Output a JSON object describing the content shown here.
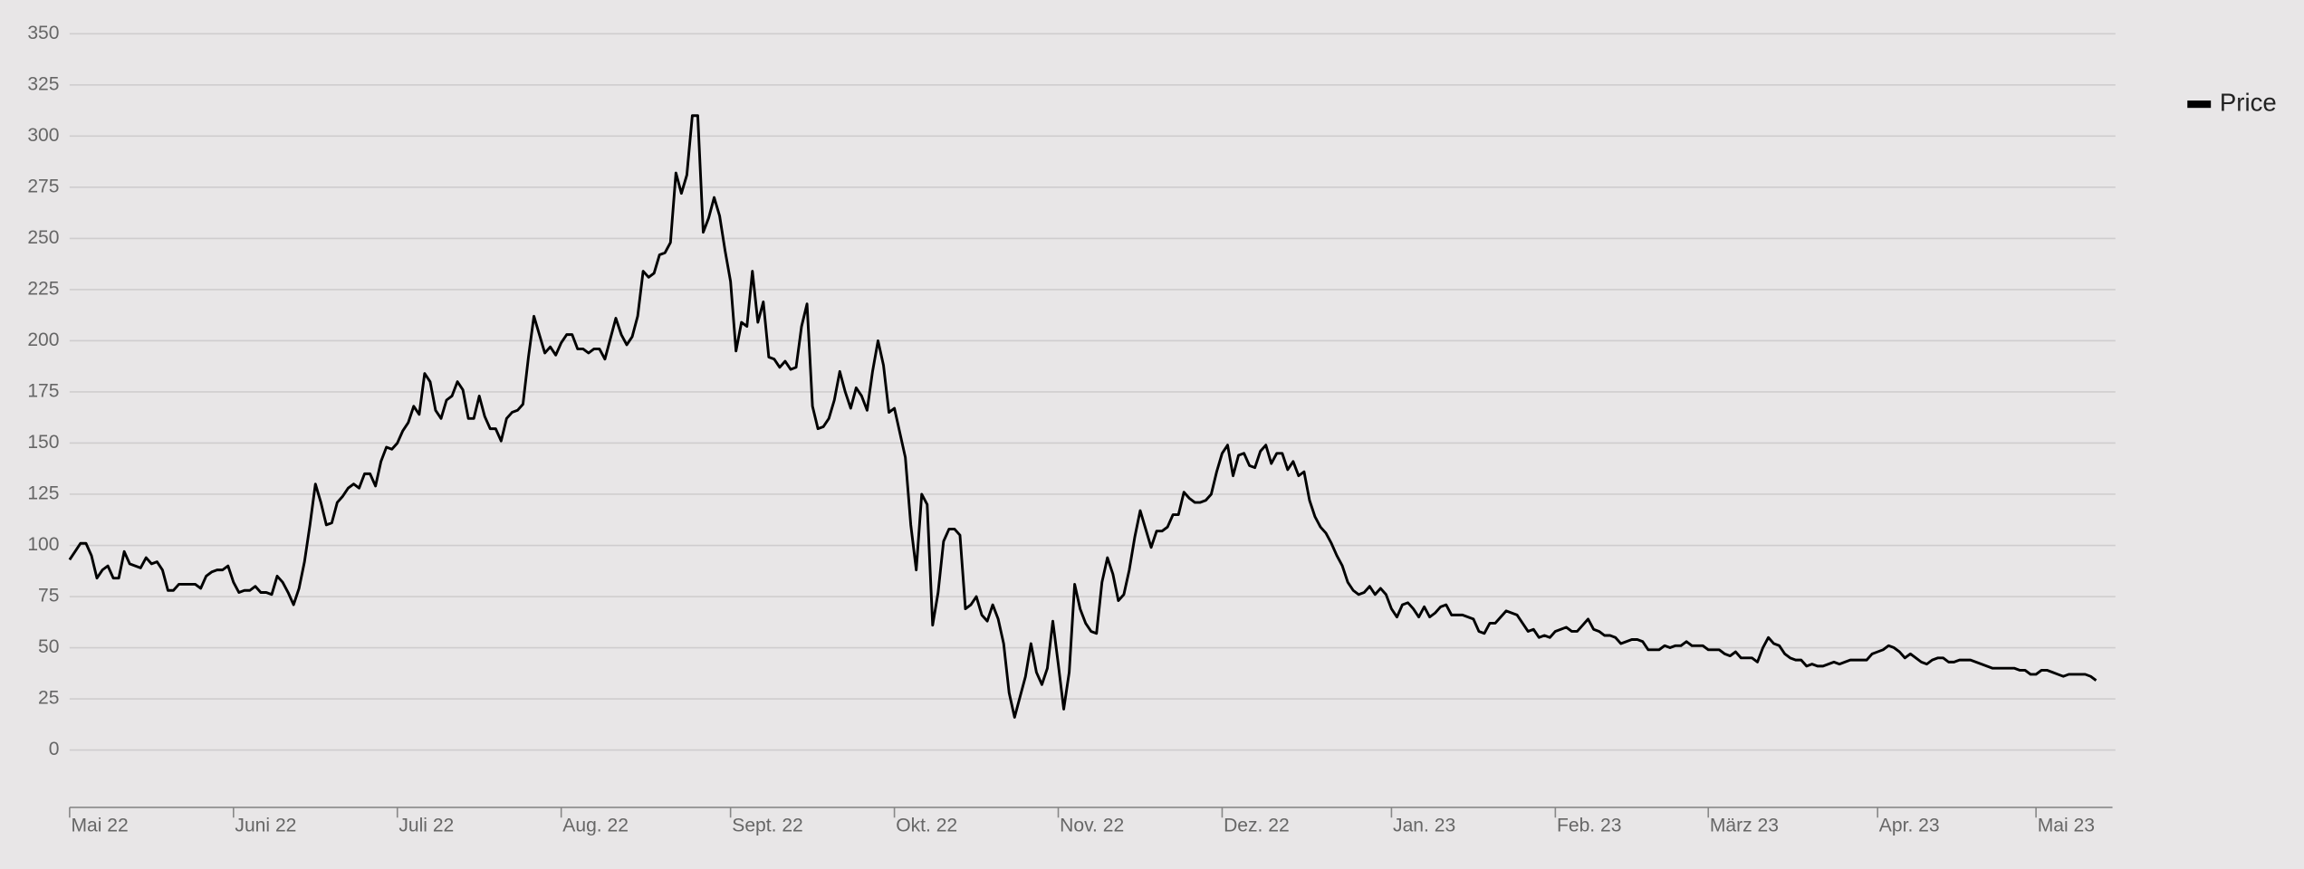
{
  "chart_data": {
    "type": "line",
    "series": [
      {
        "name": "Price",
        "color": "#000000",
        "values": [
          93,
          97,
          101,
          101,
          95,
          84,
          88,
          90,
          84,
          84,
          97,
          91,
          90,
          89,
          94,
          91,
          92,
          88,
          78,
          78,
          81,
          81,
          81,
          81,
          79,
          85,
          87,
          88,
          88,
          90,
          82,
          77,
          78,
          78,
          80,
          77,
          77,
          76,
          85,
          82,
          77,
          71,
          79,
          92,
          110,
          130,
          121,
          110,
          111,
          121,
          124,
          128,
          130,
          128,
          135,
          135,
          129,
          141,
          148,
          147,
          150,
          156,
          160,
          168,
          164,
          184,
          180,
          166,
          162,
          171,
          173,
          180,
          176,
          162,
          162,
          173,
          163,
          157,
          157,
          151,
          162,
          165,
          166,
          169,
          192,
          212,
          203,
          194,
          197,
          193,
          199,
          203,
          203,
          196,
          196,
          194,
          196,
          196,
          191,
          201,
          211,
          203,
          198,
          202,
          212,
          234,
          231,
          233,
          242,
          243,
          248,
          282,
          272,
          281,
          310,
          310,
          253,
          260,
          270,
          261,
          244,
          229,
          195,
          209,
          207,
          234,
          209,
          219,
          192,
          191,
          187,
          190,
          186,
          187,
          207,
          218,
          168,
          157,
          158,
          162,
          171,
          185,
          175,
          167,
          177,
          173,
          166,
          185,
          200,
          188,
          165,
          167,
          155,
          143,
          110,
          88,
          125,
          120,
          61,
          77,
          102,
          108,
          108,
          105,
          69,
          71,
          75,
          66,
          63,
          71,
          64,
          52,
          28,
          16,
          26,
          36,
          52,
          38,
          32,
          40,
          63,
          42,
          20,
          38,
          81,
          69,
          62,
          58,
          57,
          82,
          94,
          86,
          73,
          76,
          88,
          104,
          117,
          108,
          99,
          107,
          107,
          109,
          115,
          115,
          126,
          123,
          121,
          121,
          122,
          125,
          136,
          145,
          149,
          134,
          144,
          145,
          139,
          138,
          146,
          149,
          140,
          145,
          145,
          137,
          141,
          134,
          136,
          122,
          114,
          109,
          106,
          101,
          95,
          90,
          82,
          78,
          76,
          77,
          80,
          76,
          79,
          76,
          69,
          65,
          71,
          72,
          69,
          65,
          70,
          65,
          67,
          70,
          71,
          66,
          66,
          66,
          65,
          64,
          58,
          57,
          62,
          62,
          65,
          68,
          67,
          66,
          62,
          58,
          59,
          55,
          56,
          55,
          58,
          59,
          60,
          58,
          58,
          61,
          64,
          59,
          58,
          56,
          56,
          55,
          52,
          53,
          54,
          54,
          53,
          49,
          49,
          49,
          51,
          50,
          51,
          51,
          53,
          51,
          51,
          51,
          49,
          49,
          49,
          47,
          46,
          48,
          45,
          45,
          45,
          43,
          50,
          55,
          52,
          51,
          47,
          45,
          44,
          44,
          41,
          42,
          41,
          41,
          42,
          43,
          42,
          43,
          44,
          44,
          44,
          44,
          47,
          48,
          49,
          51,
          50,
          48,
          45,
          47,
          45,
          43,
          42,
          44,
          45,
          45,
          43,
          43,
          44,
          44,
          44,
          43,
          42,
          41,
          40,
          40,
          40,
          40,
          40,
          39,
          39,
          37,
          37,
          39,
          39,
          38,
          37,
          36,
          37,
          37,
          37,
          37,
          36,
          34
        ]
      }
    ],
    "xlim": [
      0,
      374
    ],
    "xticks": [
      {
        "value": 0,
        "label": "Mai 22"
      },
      {
        "value": 30,
        "label": "Juni 22"
      },
      {
        "value": 60,
        "label": "Juli 22"
      },
      {
        "value": 90,
        "label": "Aug. 22"
      },
      {
        "value": 121,
        "label": "Sept. 22"
      },
      {
        "value": 151,
        "label": "Okt. 22"
      },
      {
        "value": 181,
        "label": "Nov. 22"
      },
      {
        "value": 211,
        "label": "Dez. 22"
      },
      {
        "value": 242,
        "label": "Jan. 23"
      },
      {
        "value": 272,
        "label": "Feb. 23"
      },
      {
        "value": 300,
        "label": "März 23"
      },
      {
        "value": 331,
        "label": "Apr. 23"
      },
      {
        "value": 360,
        "label": "Mai 23"
      }
    ],
    "ylim": [
      -28,
      350
    ],
    "yticks": [
      0,
      25,
      50,
      75,
      100,
      125,
      150,
      175,
      200,
      225,
      250,
      275,
      300,
      325,
      350
    ],
    "grid": true,
    "legend": "top-right"
  }
}
